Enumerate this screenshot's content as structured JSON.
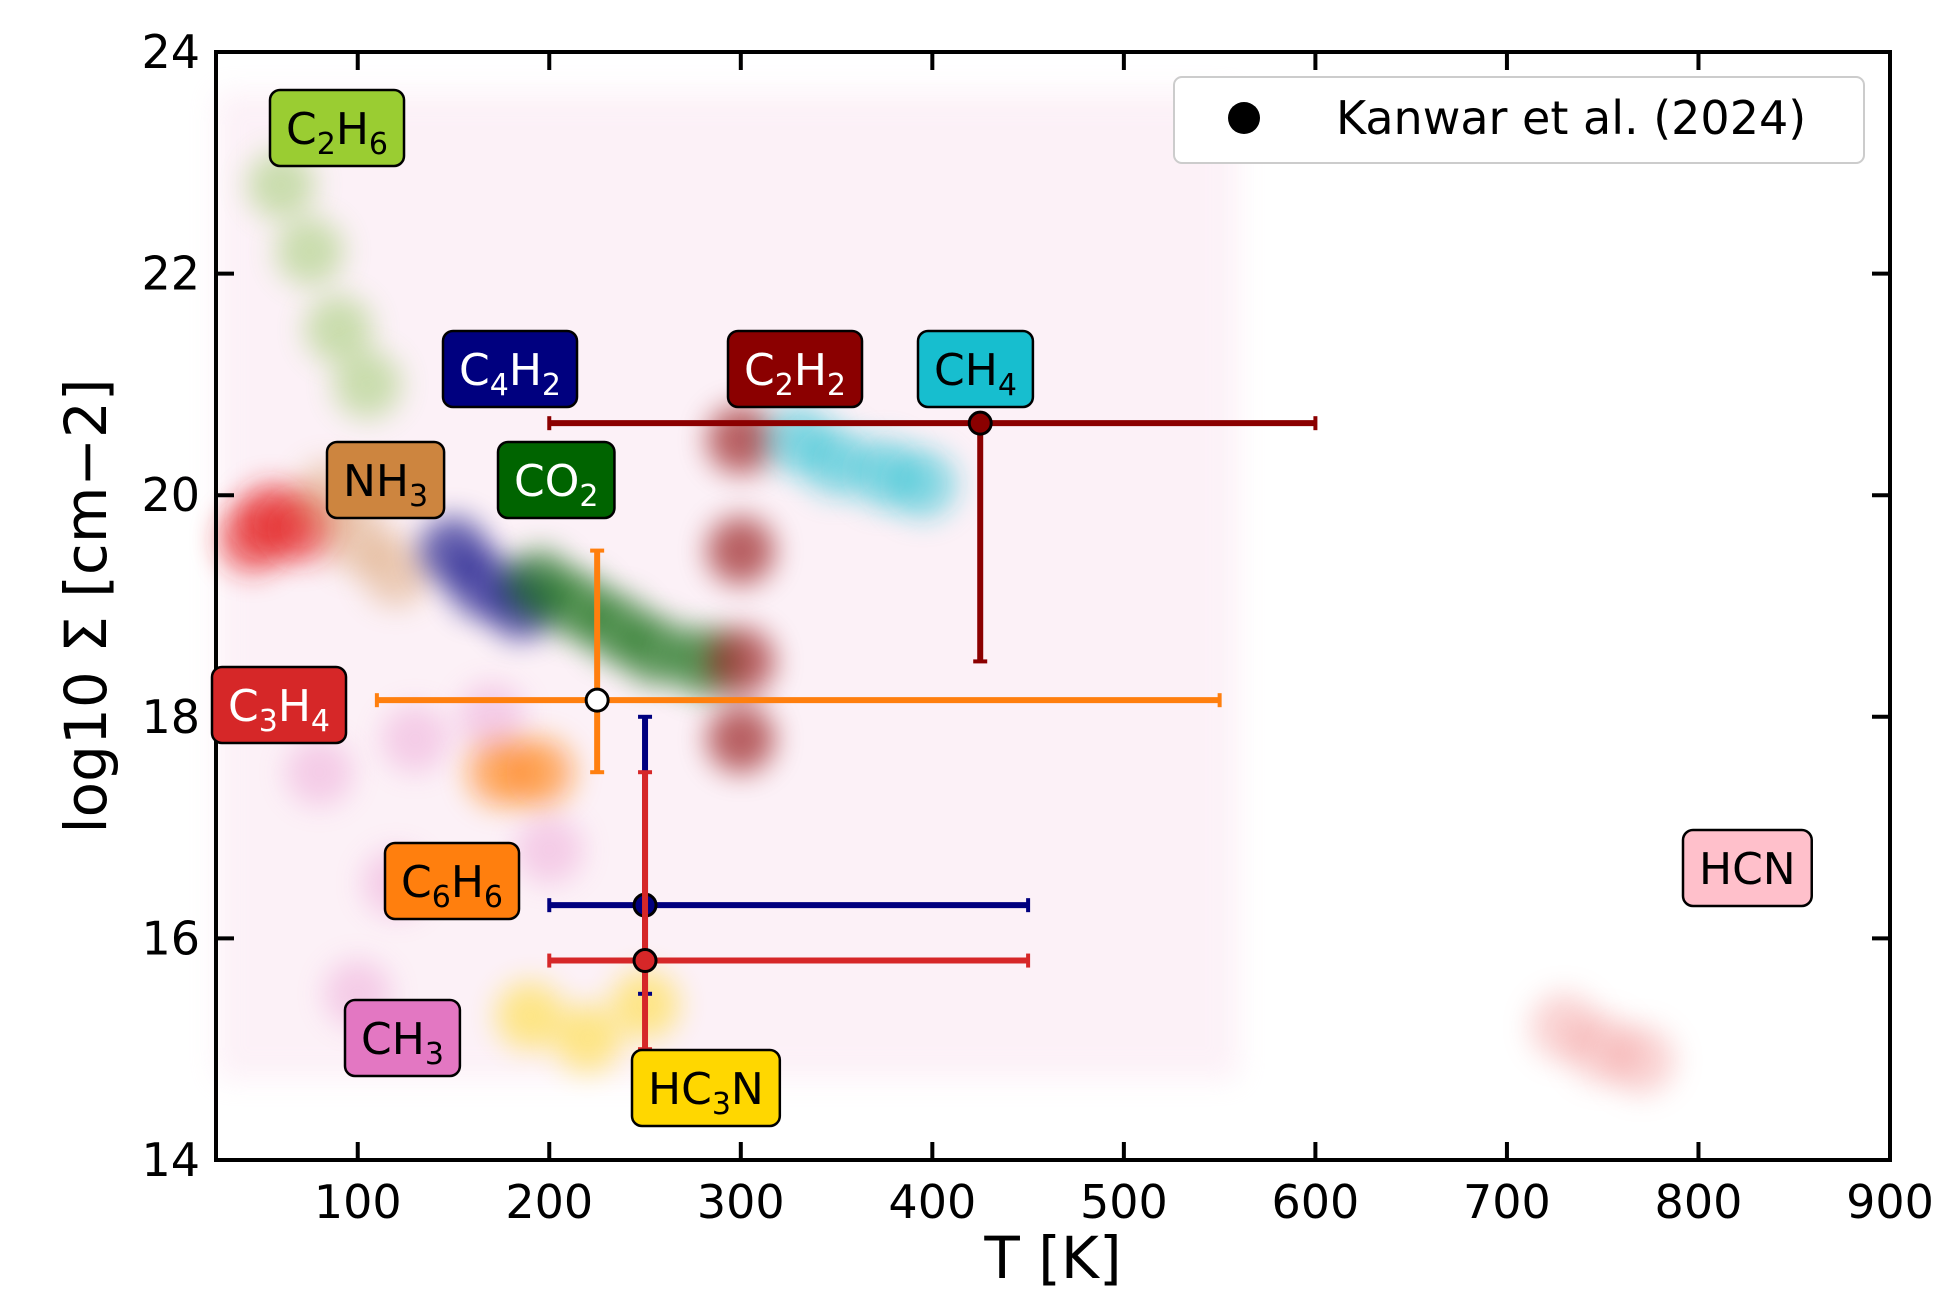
{
  "chart_data": {
    "type": "scatter",
    "xlabel": "T [K]",
    "ylabel": "log10 Σ [cm−2]",
    "xlim": [
      26,
      900
    ],
    "ylim": [
      14,
      24
    ],
    "xticks": [
      100,
      200,
      300,
      400,
      500,
      600,
      700,
      800,
      900
    ],
    "xtick_labels": [
      "100",
      "200",
      "300",
      "400",
      "500",
      "600",
      "700",
      "800",
      "900"
    ],
    "yticks": [
      14,
      16,
      18,
      20,
      22,
      24
    ],
    "ytick_labels": [
      "14",
      "16",
      "18",
      "20",
      "22",
      "24"
    ],
    "grid": false,
    "legend": {
      "position": "top-right",
      "entries": [
        {
          "label": "Kanwar et al. (2024)",
          "marker": "circle",
          "color": "#000000"
        }
      ]
    },
    "points": [
      {
        "species": "C2H2",
        "x": 425,
        "y": 20.65,
        "x_err": [
          200,
          600
        ],
        "y_err": [
          18.5,
          20.65
        ],
        "color": "#8b0000"
      },
      {
        "species": "C3H4",
        "x": 225,
        "y": 18.15,
        "x_err": [
          110,
          550
        ],
        "y_err": [
          17.5,
          19.5
        ],
        "color": "#ff7f0e",
        "open": true
      },
      {
        "species": "C4H2",
        "x": 250,
        "y": 16.3,
        "x_err": [
          200,
          450
        ],
        "y_err": [
          15.5,
          18.0
        ],
        "color": "#00007f"
      },
      {
        "species": "C3H4",
        "x": 250,
        "y": 15.8,
        "x_err": [
          200,
          450
        ],
        "y_err": [
          15.0,
          17.5
        ],
        "color": "#d62728"
      }
    ],
    "density_regions": [
      {
        "species": "C2H6",
        "color": "#7fbf3f",
        "path": [
          [
            60,
            22.8
          ],
          [
            75,
            22.2
          ],
          [
            90,
            21.5
          ],
          [
            105,
            21.0
          ]
        ],
        "alpha": 0.4
      },
      {
        "species": "C3H4",
        "color": "#e31a1c",
        "path": [
          [
            45,
            19.6
          ],
          [
            55,
            19.8
          ],
          [
            70,
            19.7
          ]
        ],
        "alpha": 0.6
      },
      {
        "species": "NH3",
        "color": "#cd853f",
        "path": [
          [
            85,
            20.0
          ],
          [
            100,
            19.6
          ],
          [
            120,
            19.3
          ]
        ],
        "alpha": 0.35
      },
      {
        "species": "C4H2",
        "color": "#00007f",
        "path": [
          [
            150,
            19.5
          ],
          [
            165,
            19.2
          ],
          [
            185,
            19.0
          ]
        ],
        "alpha": 0.6
      },
      {
        "species": "CO2",
        "color": "#006400",
        "path": [
          [
            195,
            19.2
          ],
          [
            215,
            19.0
          ],
          [
            235,
            18.8
          ],
          [
            255,
            18.6
          ],
          [
            280,
            18.5
          ]
        ],
        "alpha": 0.6
      },
      {
        "species": "C2H2",
        "color": "#8b0000",
        "path": [
          [
            300,
            20.5
          ],
          [
            300,
            19.5
          ],
          [
            300,
            18.5
          ],
          [
            300,
            17.8
          ]
        ],
        "alpha": 0.6
      },
      {
        "species": "CH4",
        "color": "#17becf",
        "path": [
          [
            330,
            20.5
          ],
          [
            350,
            20.3
          ],
          [
            375,
            20.2
          ],
          [
            395,
            20.1
          ]
        ],
        "alpha": 0.5
      },
      {
        "species": "C6H6",
        "color": "#ff7f0e",
        "path": [
          [
            175,
            17.5
          ],
          [
            195,
            17.5
          ]
        ],
        "alpha": 0.6
      },
      {
        "species": "HC3N",
        "color": "#ffd700",
        "path": [
          [
            190,
            15.3
          ],
          [
            220,
            15.1
          ],
          [
            250,
            15.4
          ]
        ],
        "alpha": 0.45
      },
      {
        "species": "CH3",
        "color": "#e377c2",
        "path": [
          [
            80,
            17.5
          ],
          [
            130,
            17.8
          ],
          [
            170,
            18.0
          ],
          [
            120,
            16.5
          ],
          [
            200,
            16.8
          ],
          [
            100,
            15.5
          ]
        ],
        "alpha": 0.3
      },
      {
        "species": "HCN",
        "color": "#f08080",
        "path": [
          [
            730,
            15.2
          ],
          [
            750,
            15.0
          ],
          [
            770,
            14.9
          ]
        ],
        "alpha": 0.35
      }
    ]
  },
  "labels": [
    {
      "key": "c2h6",
      "base": "C",
      "sub1": "2",
      "mid": "H",
      "sub2": "6",
      "bg": "#9acd32",
      "fg": "#000000"
    },
    {
      "key": "c4h2",
      "base": "C",
      "sub1": "4",
      "mid": "H",
      "sub2": "2",
      "bg": "#00007f",
      "fg": "#ffffff"
    },
    {
      "key": "c2h2",
      "base": "C",
      "sub1": "2",
      "mid": "H",
      "sub2": "2",
      "bg": "#8b0000",
      "fg": "#ffffff"
    },
    {
      "key": "ch4",
      "base": "CH",
      "sub1": "4",
      "mid": "",
      "sub2": "",
      "bg": "#17becf",
      "fg": "#000000"
    },
    {
      "key": "nh3",
      "base": "NH",
      "sub1": "3",
      "mid": "",
      "sub2": "",
      "bg": "#cd853f",
      "fg": "#000000"
    },
    {
      "key": "co2",
      "base": "CO",
      "sub1": "2",
      "mid": "",
      "sub2": "",
      "bg": "#006400",
      "fg": "#ffffff"
    },
    {
      "key": "c3h4",
      "base": "C",
      "sub1": "3",
      "mid": "H",
      "sub2": "4",
      "bg": "#d62728",
      "fg": "#ffffff"
    },
    {
      "key": "c6h6",
      "base": "C",
      "sub1": "6",
      "mid": "H",
      "sub2": "6",
      "bg": "#ff7f0e",
      "fg": "#000000"
    },
    {
      "key": "ch3",
      "base": "CH",
      "sub1": "3",
      "mid": "",
      "sub2": "",
      "bg": "#e377c2",
      "fg": "#000000"
    },
    {
      "key": "hc3n",
      "base": "HC",
      "sub1": "3",
      "mid": "N",
      "sub2": "",
      "bg": "#ffd700",
      "fg": "#000000"
    },
    {
      "key": "hcn",
      "base": "HCN",
      "sub1": "",
      "mid": "",
      "sub2": "",
      "bg": "#ffc0cb",
      "fg": "#000000"
    }
  ]
}
